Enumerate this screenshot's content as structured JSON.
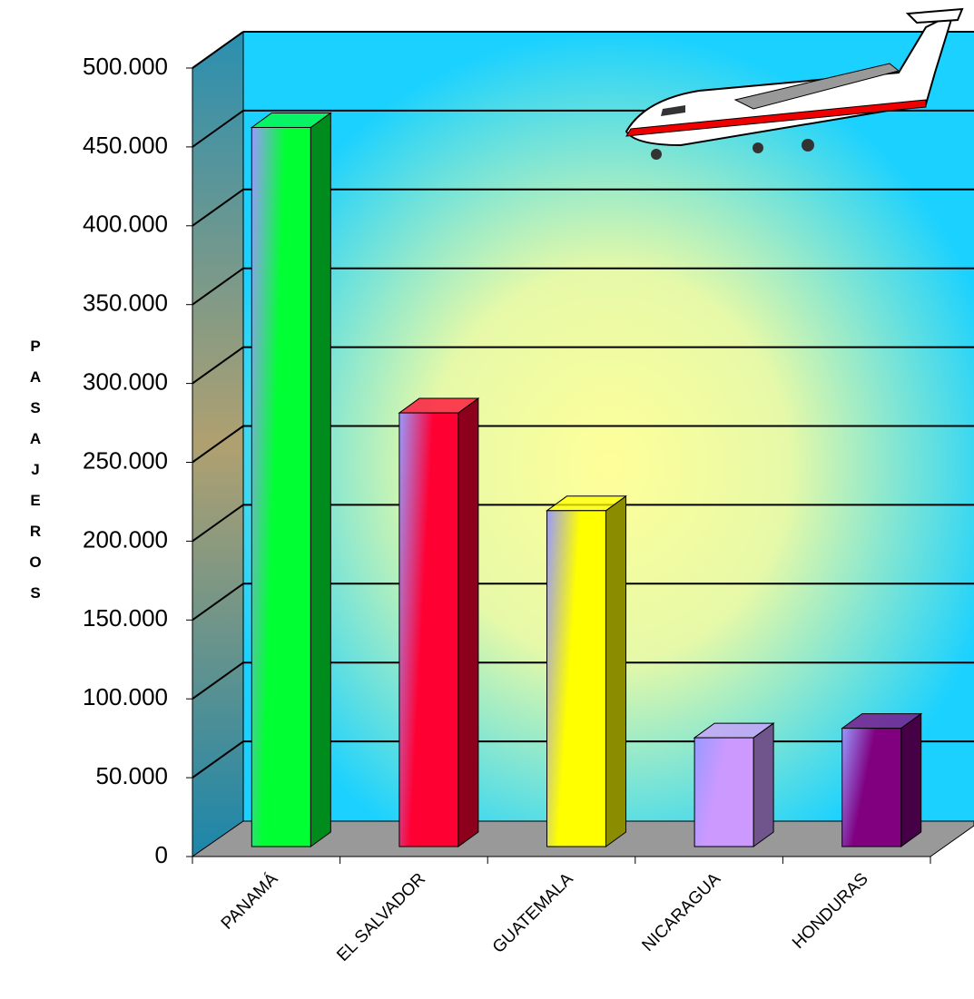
{
  "chart_data": {
    "type": "bar3d",
    "y_label": "PASAJEROS",
    "categories": [
      "PANAMÁ",
      "EL SALVADOR",
      "GUATEMALA",
      "NICARAGUA",
      "HONDURAS"
    ],
    "values": [
      456000,
      275000,
      213000,
      69000,
      75000
    ],
    "colors": [
      "#00ff33",
      "#ff0033",
      "#ffff00",
      "#cc99ff",
      "#800080"
    ],
    "ylim": [
      0,
      500000
    ],
    "yticks": [
      0,
      {
        "value": 50000,
        "label": "50.000"
      },
      {
        "value": 100000,
        "label": "100.000"
      },
      {
        "value": 150000,
        "label": "150.000"
      },
      {
        "value": 200000,
        "label": "200.000"
      },
      {
        "value": 250000,
        "label": "250.000"
      },
      {
        "value": 300000,
        "label": "300.000"
      },
      {
        "value": 350000,
        "label": "350.000"
      },
      {
        "value": 400000,
        "label": "400.000"
      },
      {
        "value": 450000,
        "label": "450.000"
      },
      {
        "value": 500000,
        "label": "500.000"
      }
    ],
    "grid": true
  }
}
